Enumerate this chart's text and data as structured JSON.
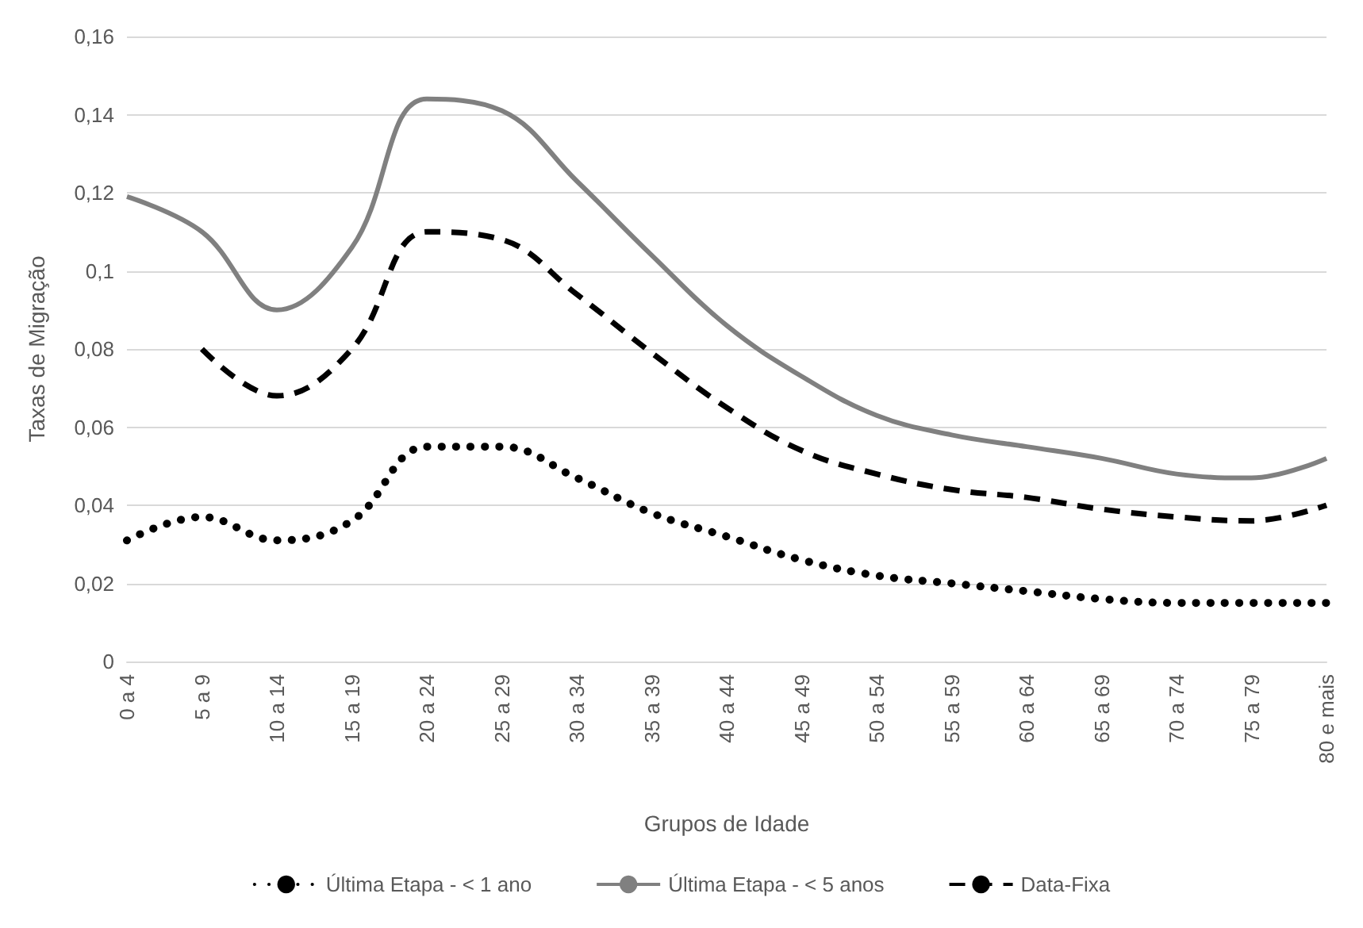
{
  "chart_data": {
    "type": "line",
    "xlabel": "Grupos de Idade",
    "ylabel": "Taxas de Migração",
    "categories": [
      "0 a 4",
      "5 a 9",
      "10 a 14",
      "15 a 19",
      "20 a 24",
      "25 a 29",
      "30 a 34",
      "35 a 39",
      "40 a 44",
      "45 a 49",
      "50 a 54",
      "55 a 59",
      "60 a 64",
      "65 a 69",
      "70 a 74",
      "75 a 79",
      "80 e mais"
    ],
    "series": [
      {
        "name": "Última Etapa - < 1 ano",
        "color": "#000000",
        "line_style": "dotted",
        "values": [
          0.031,
          0.037,
          0.031,
          0.036,
          0.055,
          0.055,
          0.047,
          0.038,
          0.032,
          0.026,
          0.022,
          0.02,
          0.018,
          0.016,
          0.015,
          0.015,
          0.015
        ]
      },
      {
        "name": "Última Etapa - < 5 anos",
        "color": "#808080",
        "line_style": "solid",
        "values": [
          0.119,
          0.11,
          0.09,
          0.106,
          0.144,
          0.141,
          0.123,
          0.104,
          0.086,
          0.073,
          0.063,
          0.058,
          0.055,
          0.052,
          0.048,
          0.047,
          0.052
        ]
      },
      {
        "name": "Data-Fixa",
        "color": "#000000",
        "line_style": "dashed",
        "values": [
          null,
          0.08,
          0.068,
          0.08,
          0.11,
          0.108,
          0.094,
          0.079,
          0.065,
          0.054,
          0.048,
          0.044,
          0.042,
          0.039,
          0.037,
          0.036,
          0.04
        ]
      }
    ],
    "ylim": [
      0,
      0.16
    ],
    "yticks": [
      0,
      {
        "value": 0.02,
        "label": "0,02"
      },
      {
        "value": 0.04,
        "label": "0,04"
      },
      {
        "value": 0.06,
        "label": "0,06"
      },
      {
        "value": 0.08,
        "label": "0,08"
      },
      {
        "value": 0.1,
        "label": "0,1"
      },
      {
        "value": 0.12,
        "label": "0,12"
      },
      {
        "value": 0.14,
        "label": "0,14"
      },
      {
        "value": 0.16,
        "label": "0,16"
      }
    ],
    "grid": "y",
    "legend": "bottom",
    "marker": "none"
  }
}
